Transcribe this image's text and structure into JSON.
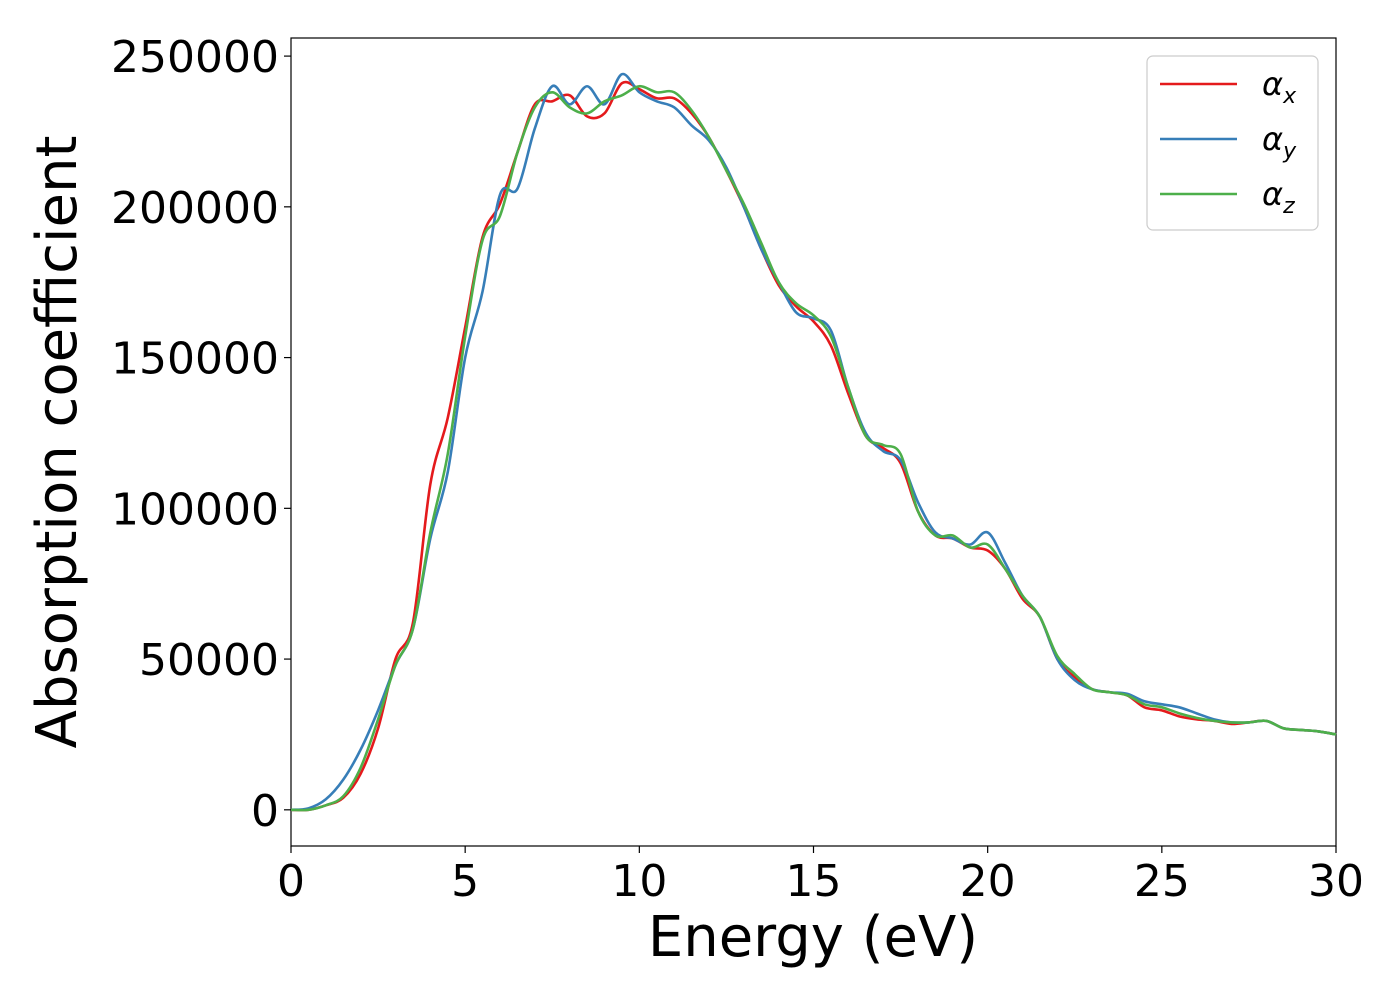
{
  "chart_data": {
    "type": "line",
    "title": "",
    "xlabel": "Energy (eV)",
    "ylabel": "Absorption coefficient",
    "xlim": [
      0,
      30
    ],
    "ylim": [
      -12000,
      256000
    ],
    "xticks": [
      0,
      5,
      10,
      15,
      20,
      25,
      30
    ],
    "yticks": [
      0,
      50000,
      100000,
      150000,
      200000,
      250000
    ],
    "grid": false,
    "legend_position": "top-right",
    "series": [
      {
        "name": "α_x",
        "symbol": "α",
        "subscript": "x",
        "color": "#e41a1c",
        "x": [
          0,
          0.5,
          1,
          1.5,
          2,
          2.5,
          3,
          3.5,
          4,
          4.5,
          5,
          5.5,
          6,
          6.5,
          7,
          7.5,
          8,
          8.5,
          9,
          9.5,
          10,
          10.5,
          11,
          11.5,
          12,
          12.5,
          13,
          13.5,
          14,
          14.5,
          15,
          15.5,
          16,
          16.5,
          17,
          17.5,
          18,
          18.5,
          19,
          19.5,
          20,
          20.5,
          21,
          21.5,
          22,
          22.5,
          23,
          23.5,
          24,
          24.5,
          25,
          25.5,
          26,
          26.5,
          27,
          27.5,
          28,
          28.5,
          29,
          29.5,
          30
        ],
        "y": [
          0,
          0,
          1500,
          4000,
          12000,
          27000,
          50000,
          62000,
          108000,
          130000,
          160000,
          190000,
          201000,
          218000,
          234000,
          235000,
          237000,
          230000,
          231000,
          241000,
          239000,
          236000,
          236000,
          231000,
          223000,
          212000,
          200000,
          186000,
          174000,
          167000,
          162000,
          154000,
          138000,
          124000,
          120000,
          115000,
          99000,
          91000,
          90000,
          87000,
          86000,
          80000,
          70000,
          64000,
          50000,
          44000,
          40000,
          39000,
          38000,
          34000,
          33000,
          31000,
          30000,
          29500,
          28500,
          29000,
          29500,
          27000,
          26500,
          26000,
          25000
        ]
      },
      {
        "name": "α_y",
        "symbol": "α",
        "subscript": "y",
        "color": "#377eb8",
        "x": [
          0,
          0.5,
          1,
          1.5,
          2,
          2.5,
          3,
          3.5,
          4,
          4.5,
          5,
          5.5,
          6,
          6.5,
          7,
          7.5,
          8,
          8.5,
          9,
          9.5,
          10,
          10.5,
          11,
          11.5,
          12,
          12.5,
          13,
          13.5,
          14,
          14.5,
          15,
          15.5,
          16,
          16.5,
          17,
          17.5,
          18,
          18.5,
          19,
          19.5,
          20,
          20.5,
          21,
          21.5,
          22,
          22.5,
          23,
          23.5,
          24,
          24.5,
          25,
          25.5,
          26,
          26.5,
          27,
          27.5,
          28,
          28.5,
          29,
          29.5,
          30
        ],
        "y": [
          0,
          500,
          3500,
          10000,
          20000,
          33000,
          48000,
          60000,
          90000,
          112000,
          150000,
          172000,
          204000,
          206000,
          226000,
          240000,
          234000,
          240000,
          234000,
          244000,
          238000,
          235000,
          233000,
          227000,
          222000,
          213000,
          200000,
          186000,
          175000,
          165000,
          163000,
          159000,
          140000,
          125000,
          119000,
          116000,
          102000,
          92000,
          90000,
          88000,
          92000,
          82000,
          71000,
          64000,
          50000,
          43000,
          40000,
          39000,
          38500,
          36000,
          35000,
          34000,
          32000,
          30000,
          29000,
          29000,
          29500,
          27000,
          26500,
          26000,
          25000
        ]
      },
      {
        "name": "α_z",
        "symbol": "α",
        "subscript": "z",
        "color": "#4daf4a",
        "x": [
          0,
          0.5,
          1,
          1.5,
          2,
          2.5,
          3,
          3.5,
          4,
          4.5,
          5,
          5.5,
          6,
          6.5,
          7,
          7.5,
          8,
          8.5,
          9,
          9.5,
          10,
          10.5,
          11,
          11.5,
          12,
          12.5,
          13,
          13.5,
          14,
          14.5,
          15,
          15.5,
          16,
          16.5,
          17,
          17.5,
          18,
          18.5,
          19,
          19.5,
          20,
          20.5,
          21,
          21.5,
          22,
          22.5,
          23,
          23.5,
          24,
          24.5,
          25,
          25.5,
          26,
          26.5,
          27,
          27.5,
          28,
          28.5,
          29,
          29.5,
          30
        ],
        "y": [
          0,
          0,
          1500,
          4500,
          14000,
          30000,
          48000,
          60000,
          92000,
          118000,
          157000,
          189000,
          197000,
          218000,
          233000,
          238000,
          233000,
          231000,
          235000,
          237000,
          240000,
          238000,
          238000,
          232000,
          223000,
          212000,
          201000,
          188000,
          175000,
          168000,
          164000,
          157000,
          140000,
          124000,
          121000,
          118000,
          99000,
          91000,
          91000,
          87000,
          88000,
          80000,
          71000,
          64000,
          51000,
          45000,
          40000,
          39000,
          38000,
          35000,
          34000,
          32000,
          30500,
          29500,
          29000,
          29000,
          29500,
          27000,
          26500,
          26000,
          25000
        ]
      }
    ]
  }
}
